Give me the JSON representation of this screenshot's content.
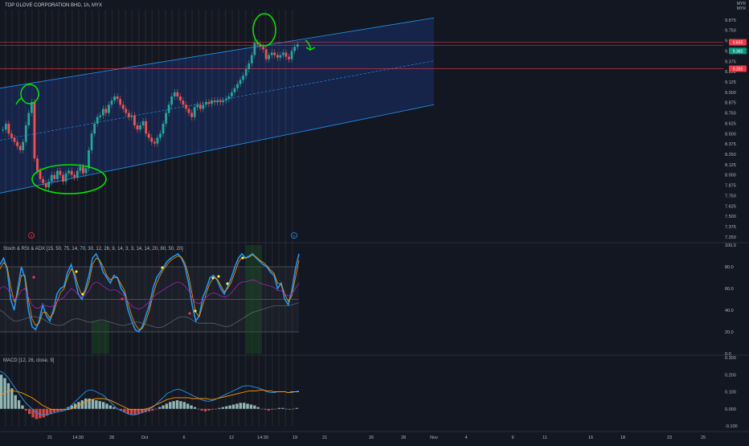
{
  "header": {
    "title": "TOP GLOVE CORPORATION BHD, 1h, MYX",
    "currency_line1": "MYR",
    "currency_line2": "MYR"
  },
  "price_tags": [
    {
      "value": "9.605",
      "color": "#f23645"
    },
    {
      "value": "9.360",
      "color": "#089981"
    },
    {
      "value": "9.285",
      "color": "#f23645"
    }
  ],
  "colors": {
    "background": "#131722",
    "channel_fill": "#2962ff",
    "channel_line": "#2196f3",
    "candle_up": "#26a69a",
    "candle_down": "#ef5350",
    "annotation": "#00e600",
    "k_line": "#2196f3",
    "d_line": "#ff9800",
    "rsi_line": "#9c27b0",
    "adx_line": "#787b86",
    "macd_line": "#2196f3",
    "signal_line": "#ff9800"
  },
  "icons": {
    "earnings_marker": "E",
    "dividend_marker": "D",
    "annotation_arrow": "arrow-down-right-icon"
  },
  "chart_data": [
    {
      "type": "candlestick",
      "title": "TOP GLOVE CORPORATION BHD, 1h, MYX",
      "ylim": [
        7.2,
        10.0
      ],
      "y_ticks": [
        "9.875",
        "9.750",
        "9.625",
        "9.500",
        "9.375",
        "9.250",
        "9.125",
        "9.000",
        "8.875",
        "8.750",
        "8.625",
        "8.500",
        "8.375",
        "8.250",
        "8.125",
        "8.000",
        "7.875",
        "7.750",
        "7.625",
        "7.500",
        "7.375",
        "7.250"
      ],
      "x_ticks": [
        "21",
        "14:30",
        "28",
        "Oct",
        "6",
        "12",
        "14:30",
        "19",
        "21",
        "26",
        "28",
        "Nov",
        "4",
        "9",
        "11",
        "16",
        "18",
        "23",
        "25"
      ],
      "close": [
        8.55,
        8.62,
        8.5,
        8.45,
        8.4,
        8.35,
        8.3,
        8.4,
        8.6,
        8.75,
        8.88,
        8.2,
        8.05,
        7.95,
        7.9,
        7.85,
        7.92,
        8.0,
        7.95,
        8.05,
        8.0,
        7.92,
        8.02,
        8.05,
        8.0,
        7.97,
        8.05,
        8.1,
        8.02,
        8.08,
        8.3,
        8.5,
        8.62,
        8.7,
        8.72,
        8.8,
        8.75,
        8.85,
        8.9,
        8.95,
        8.92,
        8.85,
        8.8,
        8.75,
        8.7,
        8.72,
        8.6,
        8.55,
        8.6,
        8.65,
        8.5,
        8.45,
        8.4,
        8.38,
        8.45,
        8.5,
        8.62,
        8.75,
        8.85,
        8.95,
        9.0,
        8.95,
        8.9,
        8.85,
        8.8,
        8.75,
        8.7,
        8.82,
        8.85,
        8.8,
        8.85,
        8.88,
        8.86,
        8.9,
        8.88,
        8.9,
        8.88,
        8.9,
        8.92,
        8.95,
        9.0,
        9.05,
        9.1,
        9.15,
        9.2,
        9.28,
        9.35,
        9.45,
        9.6,
        9.58,
        9.55,
        9.52,
        9.4,
        9.45,
        9.48,
        9.45,
        9.42,
        9.45,
        9.48,
        9.43,
        9.4,
        9.5,
        9.55,
        9.58
      ],
      "channel": {
        "upper": [
          9.05,
          9.9
        ],
        "lower": [
          7.78,
          8.85
        ],
        "mid": [
          8.42,
          9.38
        ]
      },
      "horizontal_levels": [
        9.605,
        9.565,
        9.285
      ],
      "annotations": [
        "circle at 8.95 peak",
        "ellipse around 7.85–8.10 base",
        "circle at 9.6 top",
        "arrow pointing down-right"
      ]
    },
    {
      "type": "line",
      "title": "Stoch & RSI & ADX [15, 50, 75, 14, 70, 30, 12, 26, 9, 14, 3, 3, 14, 14, 20, 80, 50, 20]",
      "ylim": [
        0,
        100
      ],
      "y_ticks": [
        "100.0",
        "80.0",
        "60.0",
        "40.0",
        "20.0",
        "0.0"
      ],
      "bands": [
        80,
        50,
        20
      ],
      "series": [
        {
          "values": [
            82,
            88,
            78,
            50,
            40,
            60,
            80,
            70,
            40,
            25,
            22,
            30,
            45,
            35,
            30,
            40,
            55,
            60,
            62,
            75,
            82,
            70,
            55,
            50,
            60,
            72,
            88,
            92,
            85,
            75,
            70,
            65,
            72,
            70,
            60,
            55,
            40,
            30,
            22,
            20,
            25,
            35,
            45,
            60,
            70,
            75,
            80,
            85,
            88,
            90,
            92,
            88,
            80,
            65,
            45,
            30,
            35,
            52,
            60,
            70,
            72,
            68,
            60,
            55,
            62,
            70,
            80,
            88,
            92,
            88,
            90,
            92,
            88,
            85,
            82,
            80,
            75,
            72,
            60,
            65,
            50,
            45,
            58,
            78,
            92
          ]
        },
        {
          "values": [
            78,
            84,
            80,
            62,
            48,
            55,
            72,
            72,
            50,
            32,
            26,
            28,
            38,
            38,
            33,
            37,
            48,
            56,
            60,
            70,
            78,
            74,
            62,
            54,
            57,
            66,
            82,
            88,
            86,
            80,
            72,
            68,
            70,
            70,
            64,
            58,
            46,
            35,
            27,
            22,
            23,
            30,
            40,
            54,
            65,
            72,
            78,
            82,
            86,
            88,
            90,
            89,
            83,
            72,
            55,
            38,
            34,
            45,
            56,
            65,
            70,
            69,
            63,
            57,
            60,
            66,
            75,
            84,
            89,
            88,
            89,
            91,
            89,
            86,
            84,
            81,
            77,
            74,
            65,
            64,
            55,
            48,
            53,
            70,
            86
          ]
        },
        {
          "values": [
            60,
            62,
            60,
            55,
            50,
            52,
            58,
            60,
            52,
            45,
            42,
            42,
            45,
            44,
            43,
            44,
            48,
            50,
            52,
            56,
            60,
            58,
            54,
            52,
            54,
            58,
            64,
            66,
            65,
            62,
            60,
            58,
            59,
            58,
            55,
            53,
            48,
            44,
            42,
            41,
            42,
            45,
            48,
            52,
            55,
            57,
            59,
            61,
            63,
            65,
            66,
            65,
            62,
            58,
            52,
            47,
            46,
            49,
            52,
            55,
            56,
            55,
            53,
            52,
            53,
            56,
            60,
            64,
            66,
            66,
            67,
            68,
            67,
            65,
            64,
            63,
            62,
            61,
            58,
            58,
            55,
            53,
            55,
            60,
            65
          ]
        },
        {
          "values": [
            40,
            38,
            35,
            32,
            30,
            30,
            31,
            32,
            33,
            34,
            34,
            33,
            32,
            30,
            28,
            27,
            26,
            26,
            27,
            29,
            31,
            32,
            32,
            31,
            30,
            29,
            29,
            30,
            31,
            31,
            30,
            29,
            28,
            27,
            26,
            26,
            27,
            28,
            29,
            29,
            28,
            27,
            26,
            25,
            24,
            24,
            25,
            27,
            29,
            31,
            33,
            34,
            34,
            33,
            31,
            29,
            28,
            28,
            28,
            28,
            28,
            27,
            26,
            25,
            25,
            26,
            28,
            30,
            32,
            34,
            36,
            38,
            39,
            40,
            41,
            42,
            43,
            44,
            44,
            44,
            44,
            44,
            45,
            46,
            47
          ]
        }
      ]
    },
    {
      "type": "bar",
      "title": "MACD [12, 26, close, 9]",
      "ylim": [
        -0.1,
        0.3
      ],
      "y_ticks": [
        "0.300",
        "0.200",
        "0.100",
        "0.000",
        "-0.100"
      ],
      "histogram": [
        0.2,
        0.18,
        0.15,
        0.12,
        0.08,
        0.05,
        0.02,
        -0.01,
        -0.03,
        -0.05,
        -0.06,
        -0.055,
        -0.05,
        -0.04,
        -0.03,
        -0.02,
        -0.015,
        -0.01,
        0.0,
        0.01,
        0.02,
        0.03,
        0.04,
        0.05,
        0.06,
        0.06,
        0.055,
        0.05,
        0.045,
        0.04,
        0.03,
        0.02,
        0.01,
        0.0,
        -0.01,
        -0.02,
        -0.03,
        -0.035,
        -0.035,
        -0.03,
        -0.025,
        -0.02,
        -0.015,
        -0.01,
        0.0,
        0.01,
        0.02,
        0.03,
        0.04,
        0.045,
        0.05,
        0.045,
        0.04,
        0.03,
        0.02,
        0.01,
        0.0,
        -0.01,
        -0.015,
        -0.01,
        -0.005,
        0.0,
        0.005,
        0.01,
        0.015,
        0.02,
        0.025,
        0.03,
        0.035,
        0.035,
        0.03,
        0.025,
        0.02,
        0.01,
        0.0,
        -0.005,
        -0.01,
        -0.005,
        0.0,
        0.005,
        0.005,
        0.0,
        -0.005,
        0.0,
        0.005
      ],
      "series": [
        {
          "values": [
            0.22,
            0.21,
            0.19,
            0.16,
            0.13,
            0.1,
            0.07,
            0.04,
            0.02,
            0.0,
            -0.02,
            -0.03,
            -0.035,
            -0.035,
            -0.03,
            -0.025,
            -0.02,
            -0.015,
            -0.01,
            0.0,
            0.02,
            0.04,
            0.06,
            0.08,
            0.1,
            0.11,
            0.11,
            0.1,
            0.09,
            0.08,
            0.06,
            0.04,
            0.02,
            0.0,
            -0.01,
            -0.02,
            -0.03,
            -0.035,
            -0.035,
            -0.03,
            -0.02,
            -0.01,
            0.0,
            0.01,
            0.03,
            0.05,
            0.07,
            0.09,
            0.1,
            0.11,
            0.115,
            0.11,
            0.1,
            0.09,
            0.08,
            0.07,
            0.06,
            0.05,
            0.045,
            0.045,
            0.05,
            0.06,
            0.07,
            0.08,
            0.09,
            0.1,
            0.11,
            0.12,
            0.13,
            0.135,
            0.135,
            0.13,
            0.125,
            0.12,
            0.11,
            0.1,
            0.095,
            0.095,
            0.1,
            0.1,
            0.1,
            0.095,
            0.095,
            0.1,
            0.105
          ]
        },
        {
          "values": [
            0.08,
            0.09,
            0.1,
            0.105,
            0.105,
            0.1,
            0.095,
            0.085,
            0.075,
            0.065,
            0.05,
            0.035,
            0.02,
            0.01,
            0.0,
            -0.005,
            -0.005,
            -0.005,
            -0.005,
            -0.005,
            0.0,
            0.01,
            0.02,
            0.03,
            0.04,
            0.05,
            0.055,
            0.06,
            0.06,
            0.06,
            0.055,
            0.05,
            0.04,
            0.03,
            0.02,
            0.01,
            0.0,
            -0.005,
            -0.005,
            -0.005,
            -0.005,
            0.0,
            0.005,
            0.015,
            0.025,
            0.035,
            0.045,
            0.055,
            0.06,
            0.065,
            0.065,
            0.065,
            0.065,
            0.065,
            0.06,
            0.06,
            0.06,
            0.06,
            0.06,
            0.055,
            0.055,
            0.06,
            0.065,
            0.07,
            0.075,
            0.08,
            0.085,
            0.09,
            0.095,
            0.1,
            0.105,
            0.105,
            0.105,
            0.11,
            0.11,
            0.105,
            0.105,
            0.1,
            0.1,
            0.1,
            0.1,
            0.095,
            0.1,
            0.1,
            0.1
          ]
        }
      ]
    }
  ]
}
